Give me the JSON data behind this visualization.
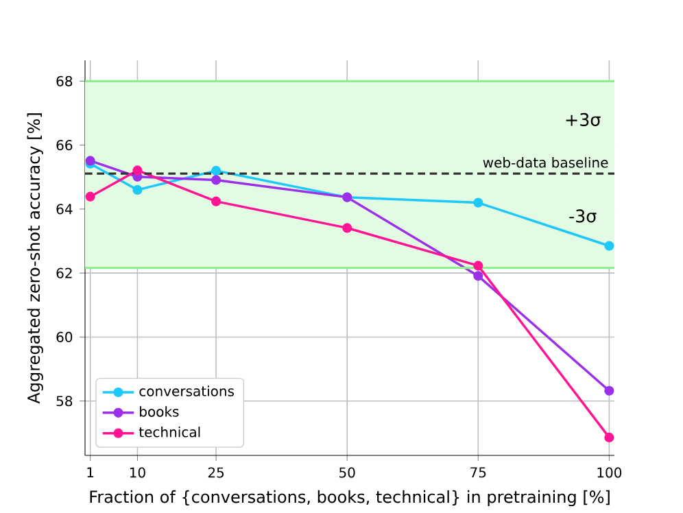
{
  "chart_data": {
    "type": "line",
    "xlabel": "Fraction of {conversations, books, technical} in pretraining [%]",
    "ylabel": "Aggregated zero-shot accuracy [%]",
    "x": [
      1,
      10,
      25,
      50,
      75,
      100
    ],
    "series": [
      {
        "name": "conversations",
        "color": "#1ec8f8",
        "values": [
          65.42,
          64.6,
          65.2,
          64.37,
          64.2,
          62.85
        ]
      },
      {
        "name": "books",
        "color": "#9b30e8",
        "values": [
          65.51,
          65.01,
          64.91,
          64.37,
          61.91,
          58.32
        ]
      },
      {
        "name": "technical",
        "color": "#ff1493",
        "values": [
          64.39,
          65.21,
          64.24,
          63.41,
          62.23,
          56.86
        ]
      }
    ],
    "xlim": [
      0,
      101
    ],
    "ylim": [
      56.3,
      68.65
    ],
    "xticks": [
      1,
      10,
      25,
      50,
      75,
      100
    ],
    "yticks": [
      58,
      60,
      62,
      64,
      66,
      68
    ],
    "ref_lines": [
      {
        "axis": "y",
        "value": 65.11,
        "label": "web-data baseline",
        "color": "#333333",
        "line_style": "dashed"
      },
      {
        "axis": "y",
        "value": 68,
        "color": "#90ee90",
        "line_style": "solid"
      },
      {
        "axis": "y",
        "value": 62.16,
        "color": "#90ee90",
        "line_style": "solid"
      }
    ],
    "bands": [
      {
        "axis": "y",
        "from": 62.16,
        "to": 68,
        "color": "#e3fbe3"
      }
    ],
    "annotations": [
      "+3σ",
      "-3σ"
    ],
    "grid": true,
    "legend": "bottom left",
    "marker": "circle",
    "line_style": "solid"
  }
}
